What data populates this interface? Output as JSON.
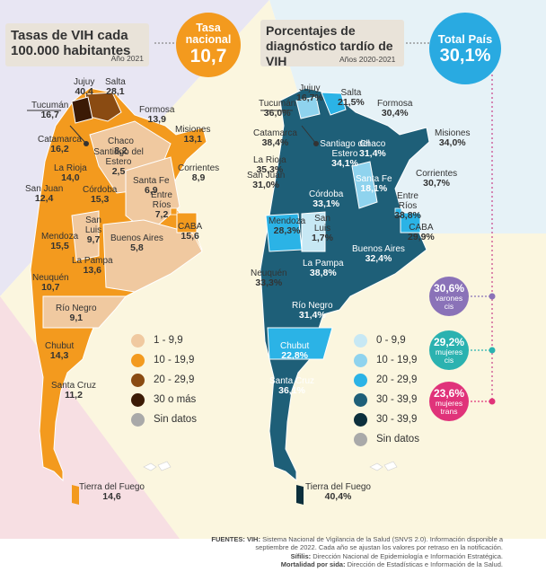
{
  "left": {
    "title_line1": "Tasas de VIH cada",
    "title_line2": "100.000 habitantes",
    "year": "Año 2021",
    "badge_label_line1": "Tasa",
    "badge_label_line2": "nacional",
    "badge_value": "10,7",
    "provinces": [
      {
        "name": "Jujuy",
        "value": "40,4"
      },
      {
        "name": "Salta",
        "value": "28,1"
      },
      {
        "name": "Formosa",
        "value": "13,9"
      },
      {
        "name": "Tucumán",
        "value": "16,7"
      },
      {
        "name": "Misiones",
        "value": "13,1"
      },
      {
        "name": "Catamarca",
        "value": "16,2"
      },
      {
        "name": "Chaco",
        "value": "8,2"
      },
      {
        "name": "Santiago del Estero",
        "value": "2,5"
      },
      {
        "name": "La Rioja",
        "value": "14,0"
      },
      {
        "name": "Corrientes",
        "value": "8,9"
      },
      {
        "name": "Santa Fe",
        "value": "6,9"
      },
      {
        "name": "San Juan",
        "value": "12,4"
      },
      {
        "name": "Córdoba",
        "value": "15,3"
      },
      {
        "name": "Entre Ríos",
        "value": "7,2"
      },
      {
        "name": "San Luis",
        "value": "9,7"
      },
      {
        "name": "CABA",
        "value": "15,6"
      },
      {
        "name": "Mendoza",
        "value": "15,5"
      },
      {
        "name": "Buenos Aires",
        "value": "5,8"
      },
      {
        "name": "La Pampa",
        "value": "13,6"
      },
      {
        "name": "Neuquén",
        "value": "10,7"
      },
      {
        "name": "Río Negro",
        "value": "9,1"
      },
      {
        "name": "Chubut",
        "value": "14,3"
      },
      {
        "name": "Santa Cruz",
        "value": "11,2"
      },
      {
        "name": "Tierra del Fuego",
        "value": "14,6"
      }
    ],
    "legend": [
      {
        "label": "1 - 9,9",
        "color": "#f0c9a0"
      },
      {
        "label": "10 - 19,9",
        "color": "#f39a1e"
      },
      {
        "label": "20 - 29,9",
        "color": "#8a4b12"
      },
      {
        "label": "30 o más",
        "color": "#3b1a05"
      },
      {
        "label": "Sin datos",
        "color": "#a9a9a9"
      }
    ]
  },
  "right": {
    "title_line1": "Porcentajes de",
    "title_line2": "diagnóstico tardío de VIH",
    "year": "Años 2020-2021",
    "badge_label": "Total País",
    "badge_value": "30,1%",
    "provinces": [
      {
        "name": "Jujuy",
        "value": "16,7%"
      },
      {
        "name": "Salta",
        "value": "21,5%"
      },
      {
        "name": "Tucumán",
        "value": "36,0%"
      },
      {
        "name": "Formosa",
        "value": "30,4%"
      },
      {
        "name": "Catamarca",
        "value": "38,4%"
      },
      {
        "name": "Santiago del Estero",
        "value": "34,1%"
      },
      {
        "name": "Chaco",
        "value": "31,4%"
      },
      {
        "name": "Misiones",
        "value": "34,0%"
      },
      {
        "name": "La Rioja",
        "value": "35,3%"
      },
      {
        "name": "Santa Fe",
        "value": "18,1%"
      },
      {
        "name": "San Juan",
        "value": "31,0%"
      },
      {
        "name": "Córdoba",
        "value": "33,1%"
      },
      {
        "name": "Corrientes",
        "value": "30,7%"
      },
      {
        "name": "Entre Ríos",
        "value": "38,8%"
      },
      {
        "name": "Mendoza",
        "value": "28,3%"
      },
      {
        "name": "San Luis",
        "value": "1,7%"
      },
      {
        "name": "CABA",
        "value": "29,9%"
      },
      {
        "name": "Buenos Aires",
        "value": "32,4%"
      },
      {
        "name": "La Pampa",
        "value": "38,8%"
      },
      {
        "name": "Neuquén",
        "value": "33,3%"
      },
      {
        "name": "Río Negro",
        "value": "31,4%"
      },
      {
        "name": "Chubut",
        "value": "22,8%"
      },
      {
        "name": "Santa Cruz",
        "value": "36,1%"
      },
      {
        "name": "Tierra del Fuego",
        "value": "40,4%"
      }
    ],
    "legend": [
      {
        "label": "0 - 9,9",
        "color": "#c7e8f4"
      },
      {
        "label": "10 - 19,9",
        "color": "#8fd3ee"
      },
      {
        "label": "20 - 29,9",
        "color": "#2bb3e6"
      },
      {
        "label": "30 - 39,9",
        "color": "#1e5f78"
      },
      {
        "label": "30 - 39,9",
        "color": "#0c2f3c"
      },
      {
        "label": "Sin datos",
        "color": "#a9a9a9"
      }
    ],
    "breakdown": [
      {
        "value": "30,6%",
        "label_line1": "varones",
        "label_line2": "cis",
        "color": "#8a72b8"
      },
      {
        "value": "29,2%",
        "label_line1": "mujeres",
        "label_line2": "cis",
        "color": "#2bb2b0"
      },
      {
        "value": "23,6%",
        "label_line1": "mujeres",
        "label_line2": "trans",
        "color": "#e0337a"
      }
    ]
  },
  "footer": {
    "line1_bold": "FUENTES: VIH:",
    "line1": "Sistema Nacional de Vigilancia de la Salud (SNVS 2.0). Información disponible a",
    "line2": "septiembre de 2022. Cada año se ajustan los valores por retraso en la notificación.",
    "line3_bold": "Sífilis:",
    "line3": "Dirección Nacional de Epidemiología e Información Estratégica.",
    "line4_bold": "Mortalidad por sida:",
    "line4": "Dirección de Estadísticas e Información de la Salud."
  }
}
